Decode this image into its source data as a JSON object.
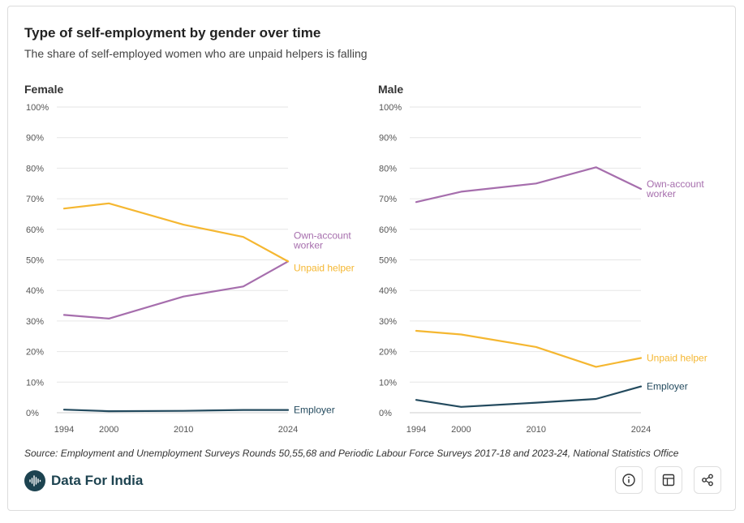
{
  "title": "Type of self-employment by gender over time",
  "subtitle": "The share of self-employed women who are unpaid helpers is falling",
  "source": "Source: Employment and Unemployment Surveys Rounds 50,55,68 and Periodic Labour Force Surveys 2017-18 and 2023-24, National Statistics Office",
  "brand": {
    "name": "Data For India",
    "logo_icon": "waveform-icon"
  },
  "toolbar": {
    "icons": [
      "info-icon",
      "table-icon",
      "share-icon"
    ]
  },
  "colors": {
    "own_account": "#a66ead",
    "unpaid_helper": "#f5b731",
    "employer": "#234a5e"
  },
  "chart_data": [
    {
      "type": "line",
      "title": "Female",
      "ylim": [
        0,
        100
      ],
      "yticks": [
        "0%",
        "10%",
        "20%",
        "30%",
        "40%",
        "50%",
        "60%",
        "70%",
        "80%",
        "90%",
        "100%"
      ],
      "xticks": [
        "1994",
        "2000",
        "2010",
        "2024"
      ],
      "grid": true,
      "series": [
        {
          "name": "Own-account worker",
          "label_lines": [
            "Own-account",
            "worker"
          ],
          "color": "#a66ead",
          "x": [
            1994,
            2000,
            2010,
            2018,
            2024
          ],
          "values": [
            32,
            30.8,
            38,
            41.3,
            49.5
          ]
        },
        {
          "name": "Unpaid helper",
          "label_lines": [
            "Unpaid helper"
          ],
          "color": "#f5b731",
          "x": [
            1994,
            2000,
            2010,
            2018,
            2024
          ],
          "values": [
            66.8,
            68.5,
            61.5,
            57.5,
            49.5
          ]
        },
        {
          "name": "Employer",
          "label_lines": [
            "Employer"
          ],
          "color": "#234a5e",
          "x": [
            1994,
            2000,
            2010,
            2018,
            2024
          ],
          "values": [
            1.0,
            0.5,
            0.6,
            0.9,
            0.9
          ]
        }
      ]
    },
    {
      "type": "line",
      "title": "Male",
      "ylim": [
        0,
        100
      ],
      "yticks": [
        "0%",
        "10%",
        "20%",
        "30%",
        "40%",
        "50%",
        "60%",
        "70%",
        "80%",
        "90%",
        "100%"
      ],
      "xticks": [
        "1994",
        "2000",
        "2010",
        "2024"
      ],
      "grid": true,
      "series": [
        {
          "name": "Own-account worker",
          "label_lines": [
            "Own-account",
            "worker"
          ],
          "color": "#a66ead",
          "x": [
            1994,
            2000,
            2010,
            2018,
            2024
          ],
          "values": [
            68.9,
            72.3,
            75,
            80.3,
            73.2
          ]
        },
        {
          "name": "Unpaid helper",
          "label_lines": [
            "Unpaid helper"
          ],
          "color": "#f5b731",
          "x": [
            1994,
            2000,
            2010,
            2018,
            2024
          ],
          "values": [
            26.8,
            25.6,
            21.5,
            15,
            17.9
          ]
        },
        {
          "name": "Employer",
          "label_lines": [
            "Employer"
          ],
          "color": "#234a5e",
          "x": [
            1994,
            2000,
            2010,
            2018,
            2024
          ],
          "values": [
            4.2,
            1.9,
            3.3,
            4.5,
            8.6
          ]
        }
      ]
    }
  ]
}
